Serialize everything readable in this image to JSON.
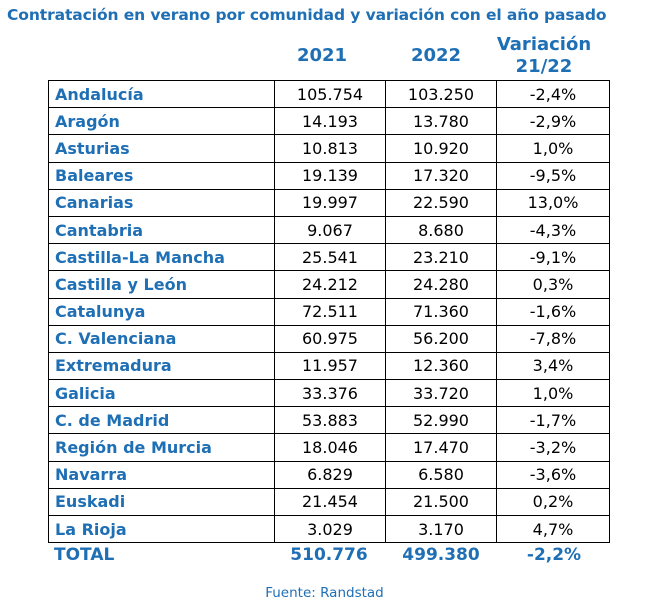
{
  "title": "Contratación en verano por comunidad y variación con el año pasado",
  "header": {
    "col_2021": "2021",
    "col_2022": "2022",
    "col_var_line1": "Variación",
    "col_var_line2": "21/22"
  },
  "rows": [
    {
      "name": "Andalucía",
      "v2021": "105.754",
      "v2022": "103.250",
      "var": "-2,4%"
    },
    {
      "name": "Aragón",
      "v2021": "14.193",
      "v2022": "13.780",
      "var": "-2,9%"
    },
    {
      "name": "Asturias",
      "v2021": "10.813",
      "v2022": "10.920",
      "var": "1,0%"
    },
    {
      "name": "Baleares",
      "v2021": "19.139",
      "v2022": "17.320",
      "var": "-9,5%"
    },
    {
      "name": "Canarias",
      "v2021": "19.997",
      "v2022": "22.590",
      "var": "13,0%"
    },
    {
      "name": "Cantabria",
      "v2021": "9.067",
      "v2022": "8.680",
      "var": "-4,3%"
    },
    {
      "name": "Castilla-La Mancha",
      "v2021": "25.541",
      "v2022": "23.210",
      "var": "-9,1%"
    },
    {
      "name": "Castilla y León",
      "v2021": "24.212",
      "v2022": "24.280",
      "var": "0,3%"
    },
    {
      "name": "Catalunya",
      "v2021": "72.511",
      "v2022": "71.360",
      "var": "-1,6%"
    },
    {
      "name": "C. Valenciana",
      "v2021": "60.975",
      "v2022": "56.200",
      "var": "-7,8%"
    },
    {
      "name": "Extremadura",
      "v2021": "11.957",
      "v2022": "12.360",
      "var": "3,4%"
    },
    {
      "name": "Galicia",
      "v2021": "33.376",
      "v2022": "33.720",
      "var": "1,0%"
    },
    {
      "name": "C. de Madrid",
      "v2021": "53.883",
      "v2022": "52.990",
      "var": "-1,7%"
    },
    {
      "name": "Región de Murcia",
      "v2021": "18.046",
      "v2022": "17.470",
      "var": "-3,2%"
    },
    {
      "name": "Navarra",
      "v2021": "6.829",
      "v2022": "6.580",
      "var": "-3,6%"
    },
    {
      "name": "Euskadi",
      "v2021": "21.454",
      "v2022": "21.500",
      "var": "0,2%"
    },
    {
      "name": "La Rioja",
      "v2021": "3.029",
      "v2022": "3.170",
      "var": "4,7%"
    }
  ],
  "total": {
    "label": "TOTAL",
    "v2021": "510.776",
    "v2022": "499.380",
    "var": "-2,2%"
  },
  "source": "Fuente: Randstad",
  "colors": {
    "accent": "#1f6fb5",
    "text": "#000000",
    "border": "#000000",
    "background": "#ffffff"
  }
}
